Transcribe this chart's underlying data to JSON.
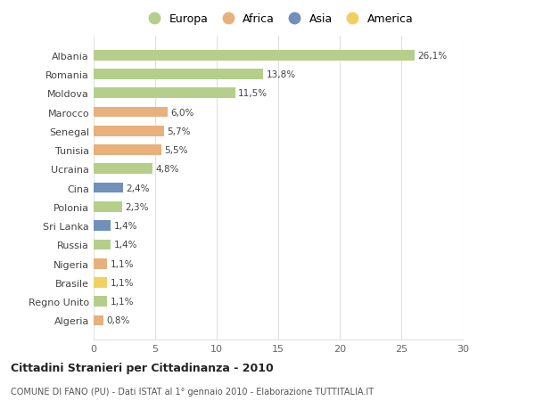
{
  "categories": [
    "Albania",
    "Romania",
    "Moldova",
    "Marocco",
    "Senegal",
    "Tunisia",
    "Ucraina",
    "Cina",
    "Polonia",
    "Sri Lanka",
    "Russia",
    "Nigeria",
    "Brasile",
    "Regno Unito",
    "Algeria"
  ],
  "values": [
    26.1,
    13.8,
    11.5,
    6.0,
    5.7,
    5.5,
    4.8,
    2.4,
    2.3,
    1.4,
    1.4,
    1.1,
    1.1,
    1.1,
    0.8
  ],
  "labels": [
    "26,1%",
    "13,8%",
    "11,5%",
    "6,0%",
    "5,7%",
    "5,5%",
    "4,8%",
    "2,4%",
    "2,3%",
    "1,4%",
    "1,4%",
    "1,1%",
    "1,1%",
    "1,1%",
    "0,8%"
  ],
  "continents": [
    "Europa",
    "Europa",
    "Europa",
    "Africa",
    "Africa",
    "Africa",
    "Europa",
    "Asia",
    "Europa",
    "Asia",
    "Europa",
    "Africa",
    "America",
    "Europa",
    "Africa"
  ],
  "colors": {
    "Europa": "#b5cf8a",
    "Africa": "#e8b07a",
    "Asia": "#7090bb",
    "America": "#f0d060"
  },
  "title": "Cittadini Stranieri per Cittadinanza - 2010",
  "subtitle": "COMUNE DI FANO (PU) - Dati ISTAT al 1° gennaio 2010 - Elaborazione TUTTITALIA.IT",
  "xlim": [
    0,
    30
  ],
  "xticks": [
    0,
    5,
    10,
    15,
    20,
    25,
    30
  ],
  "background_color": "#ffffff",
  "grid_color": "#e0e0e0",
  "bar_height": 0.55
}
